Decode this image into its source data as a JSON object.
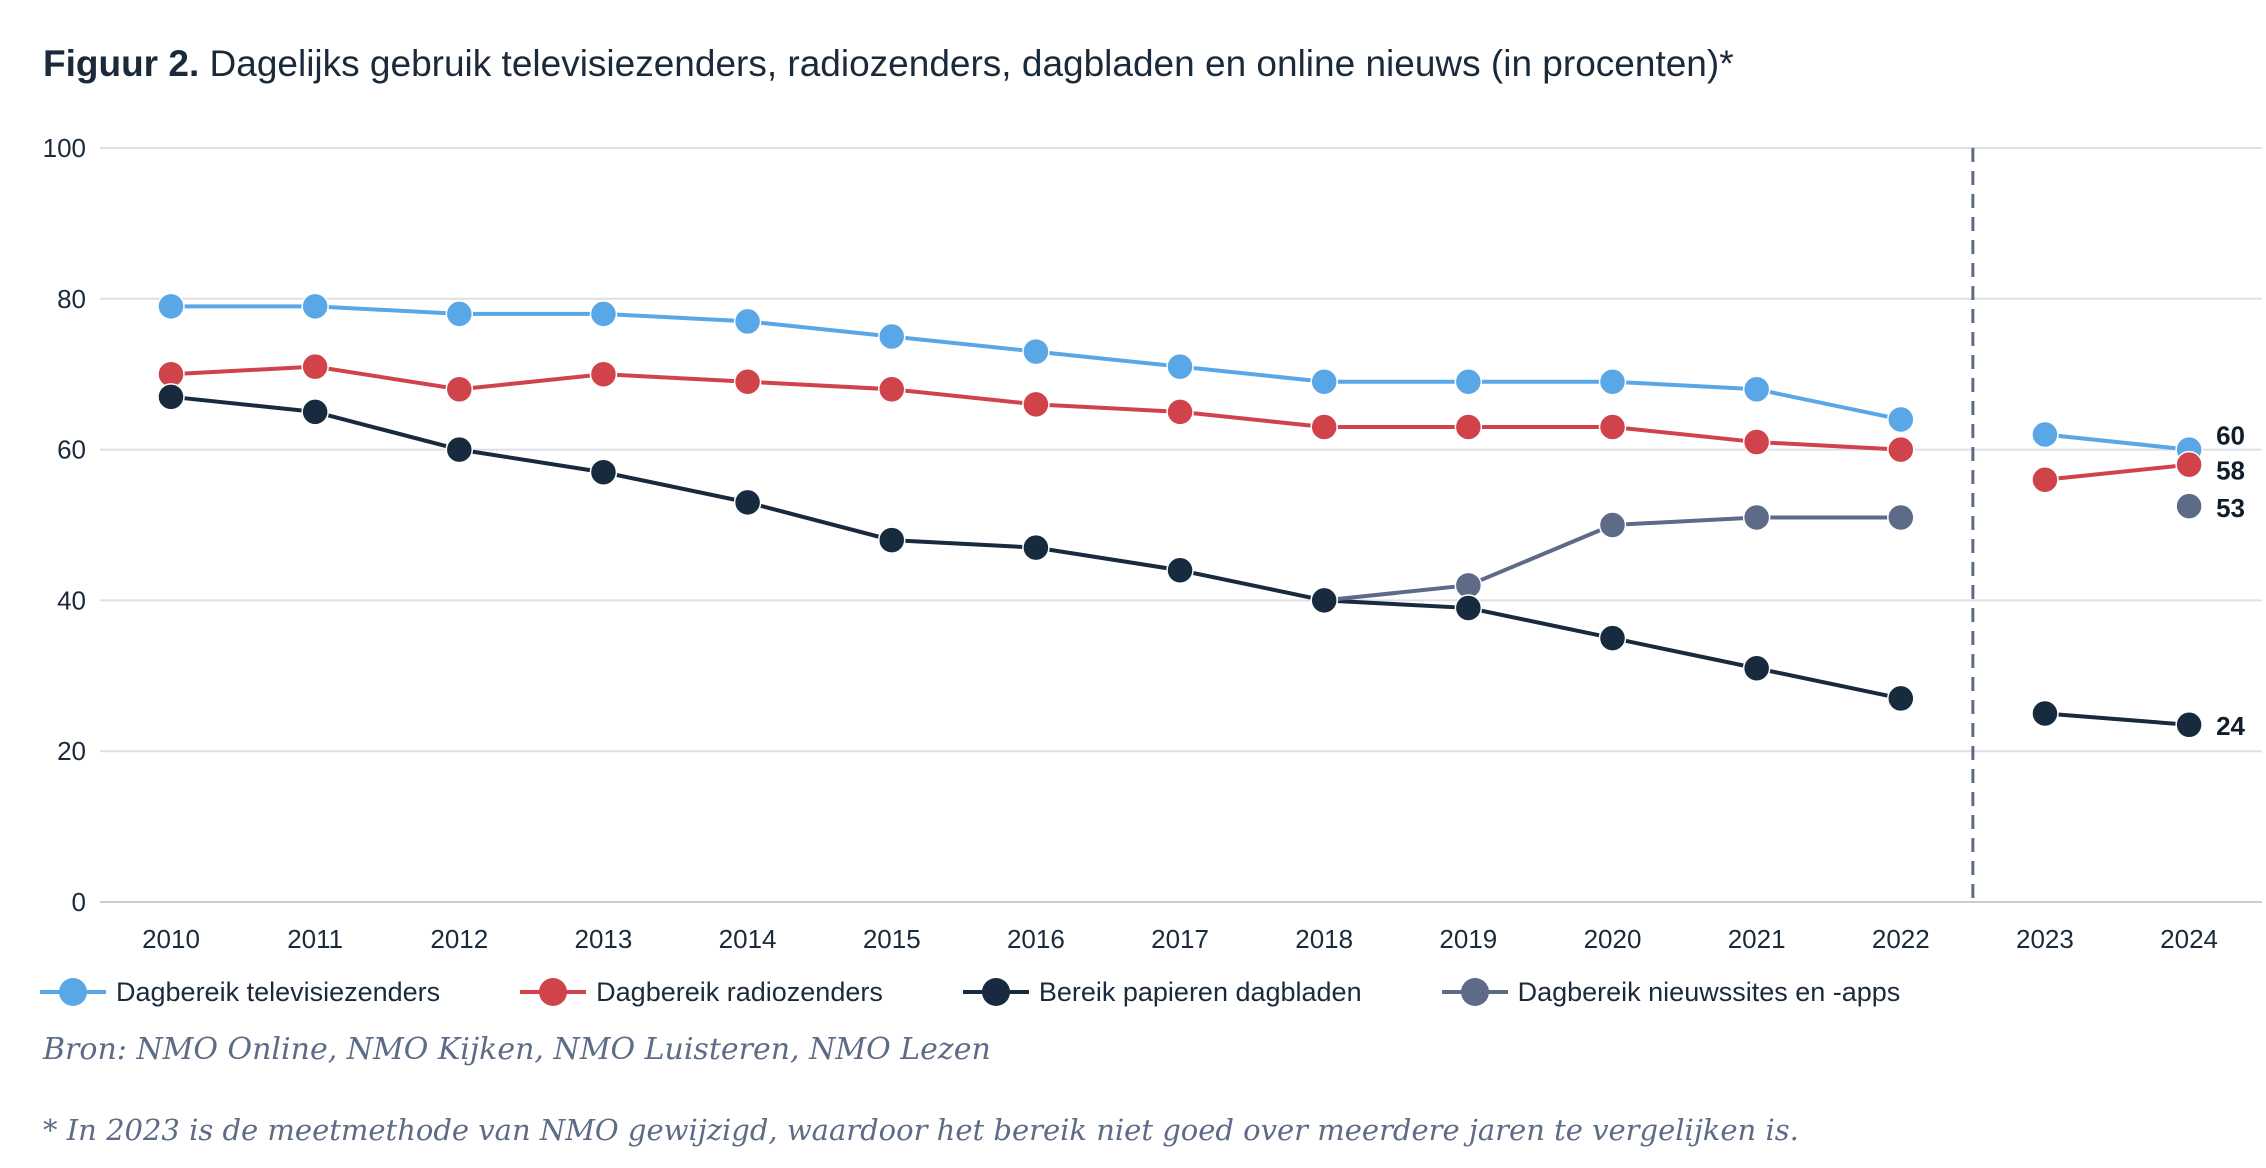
{
  "title": {
    "prefix": "Figuur 2.",
    "text": "Dagelijks gebruik televisiezenders, radiozenders, dagbladen en online nieuws (in procenten)*"
  },
  "source": "Bron: NMO Online, NMO Kijken, NMO Luisteren, NMO Lezen",
  "footnote": "* In 2023 is de meetmethode van NMO gewijzigd, waardoor het bereik niet goed over meerdere jaren te vergelijken is.",
  "chart_data": {
    "type": "line",
    "title": "Dagelijks gebruik televisiezenders, radiozenders, dagbladen en online nieuws (in procenten)*",
    "xlabel": "",
    "ylabel": "",
    "ylim": [
      0,
      100
    ],
    "yticks": [
      0,
      20,
      40,
      60,
      80,
      100
    ],
    "grid": true,
    "categories": [
      "2010",
      "2011",
      "2012",
      "2013",
      "2014",
      "2015",
      "2016",
      "2017",
      "2018",
      "2019",
      "2020",
      "2021",
      "2022",
      "2023",
      "2024"
    ],
    "break_after": "2022",
    "legend_position": "bottom",
    "series": [
      {
        "name": "Dagbereik televisiezenders",
        "color": "#5aa7e8",
        "values": [
          79,
          79,
          78,
          78,
          77,
          75,
          73,
          71,
          69,
          69,
          69,
          68,
          64,
          62,
          60
        ],
        "end_label": "60"
      },
      {
        "name": "Dagbereik radiozenders",
        "color": "#d1434a",
        "values": [
          70,
          71,
          68,
          70,
          69,
          68,
          66,
          65,
          63,
          63,
          63,
          61,
          60,
          56,
          58
        ],
        "end_label": "58"
      },
      {
        "name": "Bereik papieren dagbladen",
        "color": "#172a3e",
        "values": [
          67,
          65,
          60,
          57,
          53,
          48,
          47,
          44,
          40,
          39,
          35,
          31,
          27,
          25,
          23.5
        ],
        "end_label": "24"
      },
      {
        "name": "Dagbereik nieuwssites en -apps",
        "color": "#5d6b89",
        "values": [
          null,
          null,
          null,
          null,
          null,
          null,
          null,
          null,
          40,
          42,
          50,
          51,
          51,
          null,
          52.5
        ],
        "end_label": "53"
      }
    ]
  }
}
